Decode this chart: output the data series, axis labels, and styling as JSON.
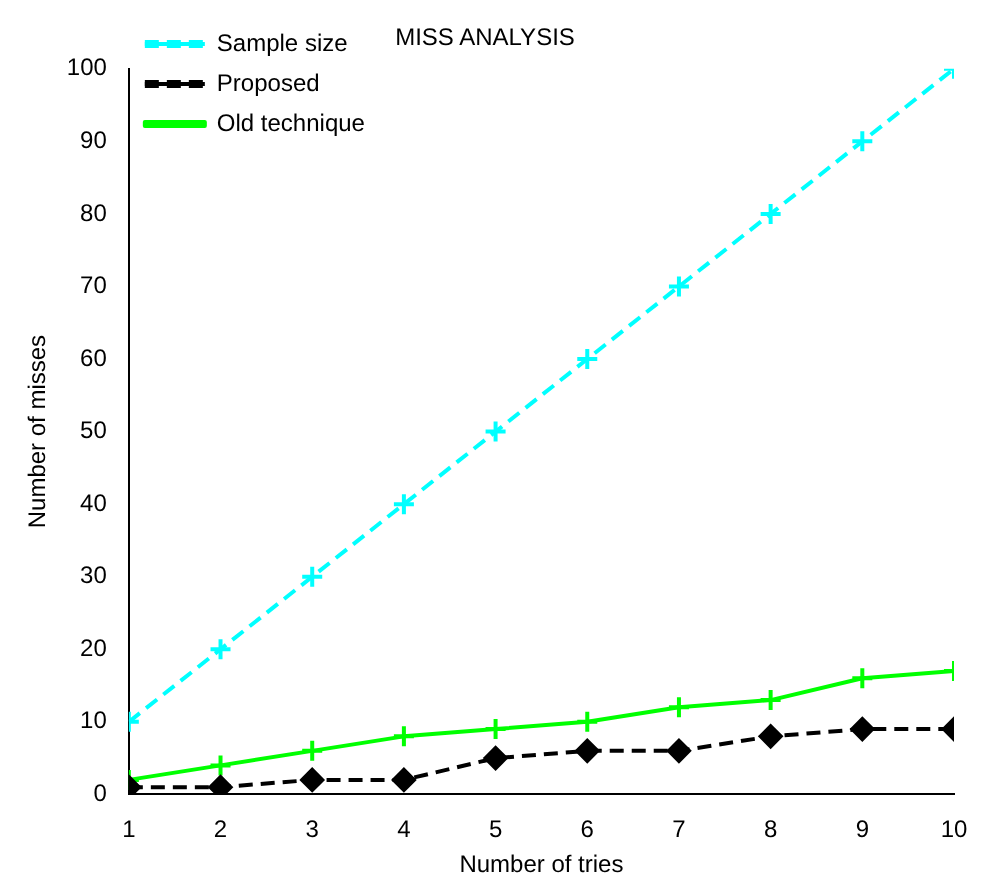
{
  "chart_data": {
    "type": "line",
    "title": "MISS ANALYSIS",
    "xlabel": "Number of tries",
    "ylabel": "Number of misses",
    "x": [
      1,
      2,
      3,
      4,
      5,
      6,
      7,
      8,
      9,
      10
    ],
    "series": [
      {
        "name": "Sample size",
        "color": "#00ffff",
        "values": [
          10,
          20,
          30,
          40,
          50,
          60,
          70,
          80,
          90,
          100
        ],
        "marker": "cross",
        "line_style": "dashed"
      },
      {
        "name": "Proposed",
        "color": "#000000",
        "values": [
          1,
          1,
          2,
          2,
          5,
          6,
          6,
          8,
          9,
          9
        ],
        "marker": "diamond",
        "line_style": "dashed"
      },
      {
        "name": "Old technique",
        "color": "#00ff00",
        "values": [
          2,
          4,
          6,
          8,
          9,
          10,
          12,
          13,
          16,
          17
        ],
        "marker": "cross",
        "line_style": "solid"
      }
    ],
    "xlim": [
      1,
      10
    ],
    "xticks": [
      1,
      2,
      3,
      4,
      5,
      6,
      7,
      8,
      9,
      10
    ],
    "ylim": [
      0,
      100
    ],
    "yticks": [
      0,
      10,
      20,
      30,
      40,
      50,
      60,
      70,
      80,
      90,
      100
    ],
    "grid": false,
    "legend": "top left"
  }
}
